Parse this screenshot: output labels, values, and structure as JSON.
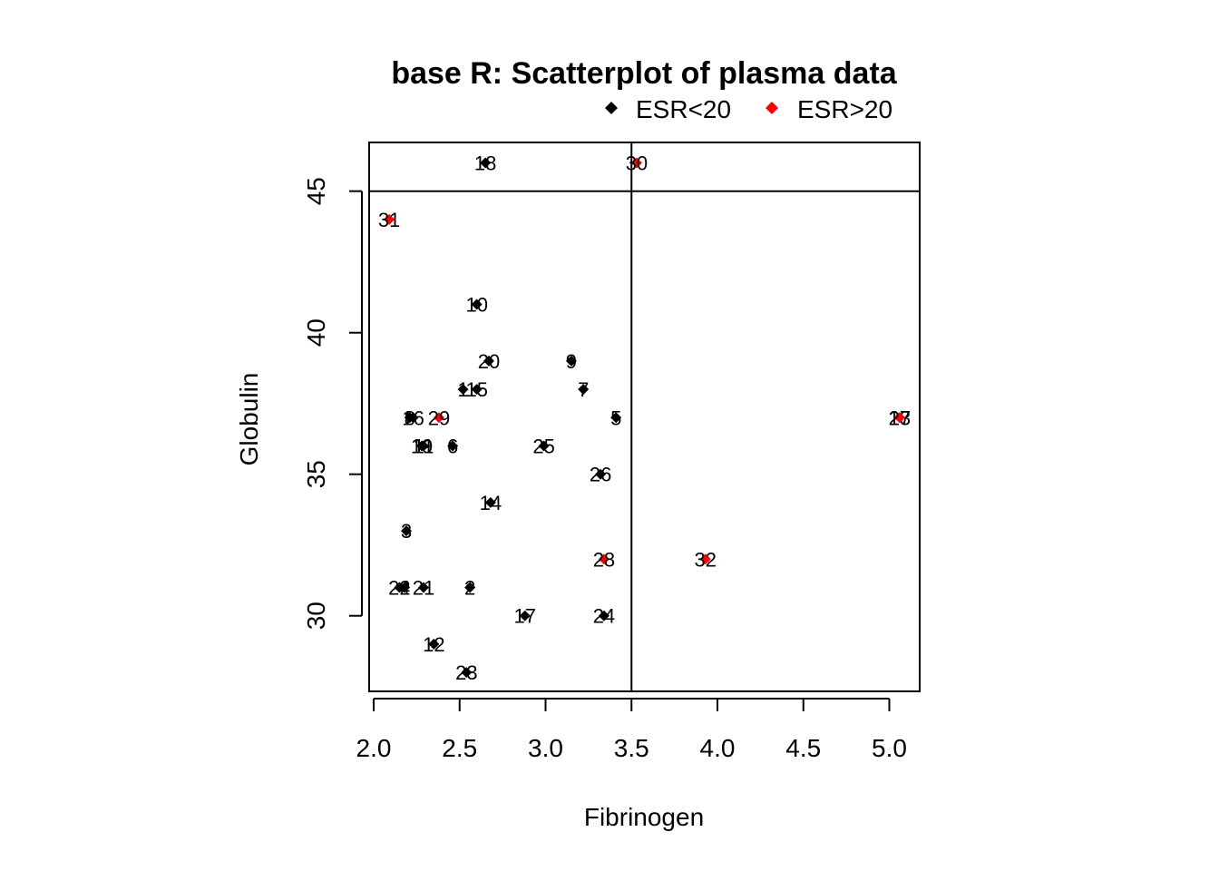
{
  "chart_data": {
    "type": "scatter",
    "title": "base R: Scatterplot of plasma data",
    "xlabel": "Fibrinogen",
    "ylabel": "Globulin",
    "xlim": [
      2.0,
      5.0
    ],
    "ylim": [
      28,
      46
    ],
    "x_ticks": [
      "2.0",
      "2.5",
      "3.0",
      "3.5",
      "4.0",
      "4.5",
      "5.0"
    ],
    "y_ticks": [
      "30",
      "35",
      "40",
      "45"
    ],
    "reference_lines": {
      "vertical_x": 3.5,
      "horizontal_y": 45
    },
    "legend": {
      "placement": "top",
      "entries": [
        {
          "label": "ESR<20",
          "color": "#000000"
        },
        {
          "label": "ESR>20",
          "color": "#ff0000"
        }
      ]
    },
    "points": [
      {
        "x": 2.52,
        "y": 38,
        "label": "1",
        "group": "ESR<20"
      },
      {
        "x": 2.56,
        "y": 31,
        "label": "2",
        "group": "ESR<20"
      },
      {
        "x": 2.19,
        "y": 33,
        "label": "3",
        "group": "ESR<20"
      },
      {
        "x": 2.18,
        "y": 31,
        "label": "4",
        "group": "ESR<20"
      },
      {
        "x": 3.41,
        "y": 37,
        "label": "5",
        "group": "ESR<20"
      },
      {
        "x": 2.46,
        "y": 36,
        "label": "6",
        "group": "ESR<20"
      },
      {
        "x": 3.22,
        "y": 38,
        "label": "7",
        "group": "ESR<20"
      },
      {
        "x": 2.21,
        "y": 37,
        "label": "8",
        "group": "ESR<20"
      },
      {
        "x": 3.15,
        "y": 39,
        "label": "9",
        "group": "ESR<20"
      },
      {
        "x": 2.6,
        "y": 41,
        "label": "10",
        "group": "ESR<20"
      },
      {
        "x": 2.29,
        "y": 36,
        "label": "11",
        "group": "ESR<20"
      },
      {
        "x": 2.35,
        "y": 29,
        "label": "12",
        "group": "ESR<20"
      },
      {
        "x": 5.06,
        "y": 37,
        "label": "13",
        "group": "ESR>20"
      },
      {
        "x": 2.68,
        "y": 34,
        "label": "14",
        "group": "ESR<20"
      },
      {
        "x": 2.6,
        "y": 38,
        "label": "15",
        "group": "ESR<20"
      },
      {
        "x": 2.23,
        "y": 37,
        "label": "16",
        "group": "ESR<20"
      },
      {
        "x": 2.88,
        "y": 30,
        "label": "17",
        "group": "ESR<20"
      },
      {
        "x": 2.65,
        "y": 46,
        "label": "18",
        "group": "ESR<20"
      },
      {
        "x": 2.28,
        "y": 36,
        "label": "19",
        "group": "ESR<20"
      },
      {
        "x": 2.67,
        "y": 39,
        "label": "20",
        "group": "ESR<20"
      },
      {
        "x": 2.29,
        "y": 31,
        "label": "21",
        "group": "ESR<20"
      },
      {
        "x": 2.15,
        "y": 31,
        "label": "22",
        "group": "ESR<20"
      },
      {
        "x": 2.54,
        "y": 28,
        "label": "23",
        "group": "ESR<20"
      },
      {
        "x": 3.34,
        "y": 30,
        "label": "24",
        "group": "ESR<20"
      },
      {
        "x": 2.99,
        "y": 36,
        "label": "25",
        "group": "ESR<20"
      },
      {
        "x": 3.32,
        "y": 35,
        "label": "26",
        "group": "ESR<20"
      },
      {
        "x": 5.06,
        "y": 37,
        "label": "27",
        "group": "ESR>20"
      },
      {
        "x": 3.34,
        "y": 32,
        "label": "28",
        "group": "ESR>20"
      },
      {
        "x": 2.38,
        "y": 37,
        "label": "29",
        "group": "ESR>20"
      },
      {
        "x": 3.53,
        "y": 46,
        "label": "30",
        "group": "ESR>20"
      },
      {
        "x": 2.09,
        "y": 44,
        "label": "31",
        "group": "ESR>20"
      },
      {
        "x": 3.93,
        "y": 32,
        "label": "32",
        "group": "ESR>20"
      }
    ]
  }
}
